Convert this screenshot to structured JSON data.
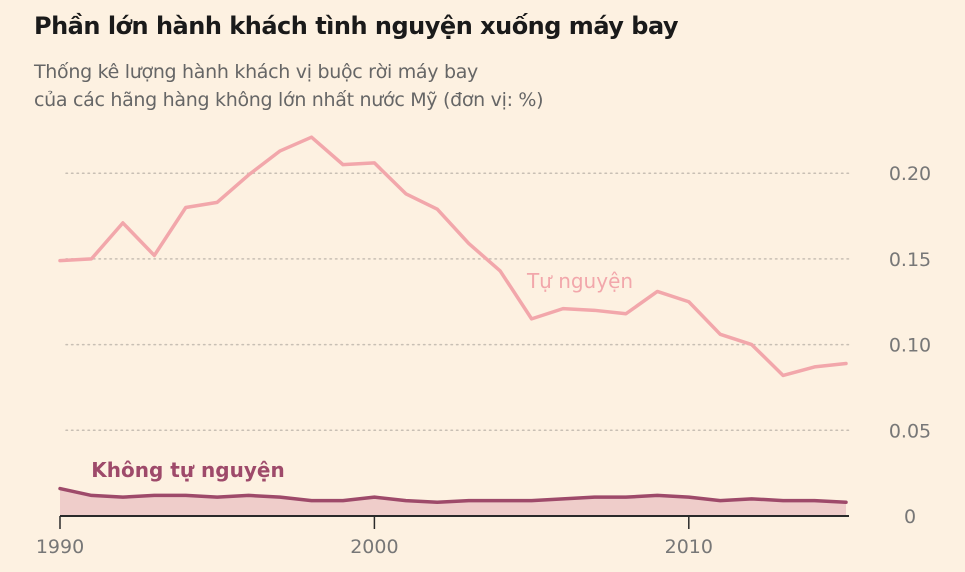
{
  "title": "Phần lớn hành khách tình nguyện xuống máy bay",
  "subtitle": [
    "Thống kê lượng hành khách vị buộc rời máy bay",
    "của các hãng hàng không lớn nhất nước Mỹ (đơn vị: %)"
  ],
  "colors": {
    "voluntary": "#f2a7ab",
    "involuntary": "#9e4a6a",
    "involuntary_fill": "#efcdca",
    "grid": "#c8bfb4",
    "axis": "#2a2a2a"
  },
  "chart_data": {
    "type": "line",
    "title": "Phần lớn hành khách tình nguyện xuống máy bay",
    "xlabel": "",
    "ylabel": "",
    "x": [
      1990,
      1991,
      1992,
      1993,
      1994,
      1995,
      1996,
      1997,
      1998,
      1999,
      2000,
      2001,
      2002,
      2003,
      2004,
      2005,
      2006,
      2007,
      2008,
      2009,
      2010,
      2011,
      2012,
      2013,
      2014,
      2015
    ],
    "xticks": [
      1990,
      2000,
      2010
    ],
    "xtick_labels": [
      "1990",
      "2000",
      "2010"
    ],
    "yticks": [
      0,
      0.05,
      0.1,
      0.15,
      0.2
    ],
    "ytick_labels": [
      "0",
      "0.05",
      "0.10",
      "0.15",
      "0.20"
    ],
    "xlim": [
      1990,
      2015
    ],
    "ylim": [
      0,
      0.22
    ],
    "grid": "horizontal-dotted",
    "series": [
      {
        "name": "Tự nguyện",
        "values": [
          0.149,
          0.15,
          0.171,
          0.152,
          0.18,
          0.183,
          0.199,
          0.213,
          0.221,
          0.205,
          0.206,
          0.188,
          0.179,
          0.159,
          0.143,
          0.115,
          0.121,
          0.12,
          0.118,
          0.131,
          0.125,
          0.106,
          0.1,
          0.082,
          0.087,
          0.089
        ]
      },
      {
        "name": "Không tự nguyện",
        "values": [
          0.016,
          0.012,
          0.011,
          0.012,
          0.012,
          0.011,
          0.012,
          0.011,
          0.009,
          0.009,
          0.011,
          0.009,
          0.008,
          0.009,
          0.009,
          0.009,
          0.01,
          0.011,
          0.011,
          0.012,
          0.011,
          0.009,
          0.01,
          0.009,
          0.009,
          0.008
        ]
      }
    ]
  }
}
